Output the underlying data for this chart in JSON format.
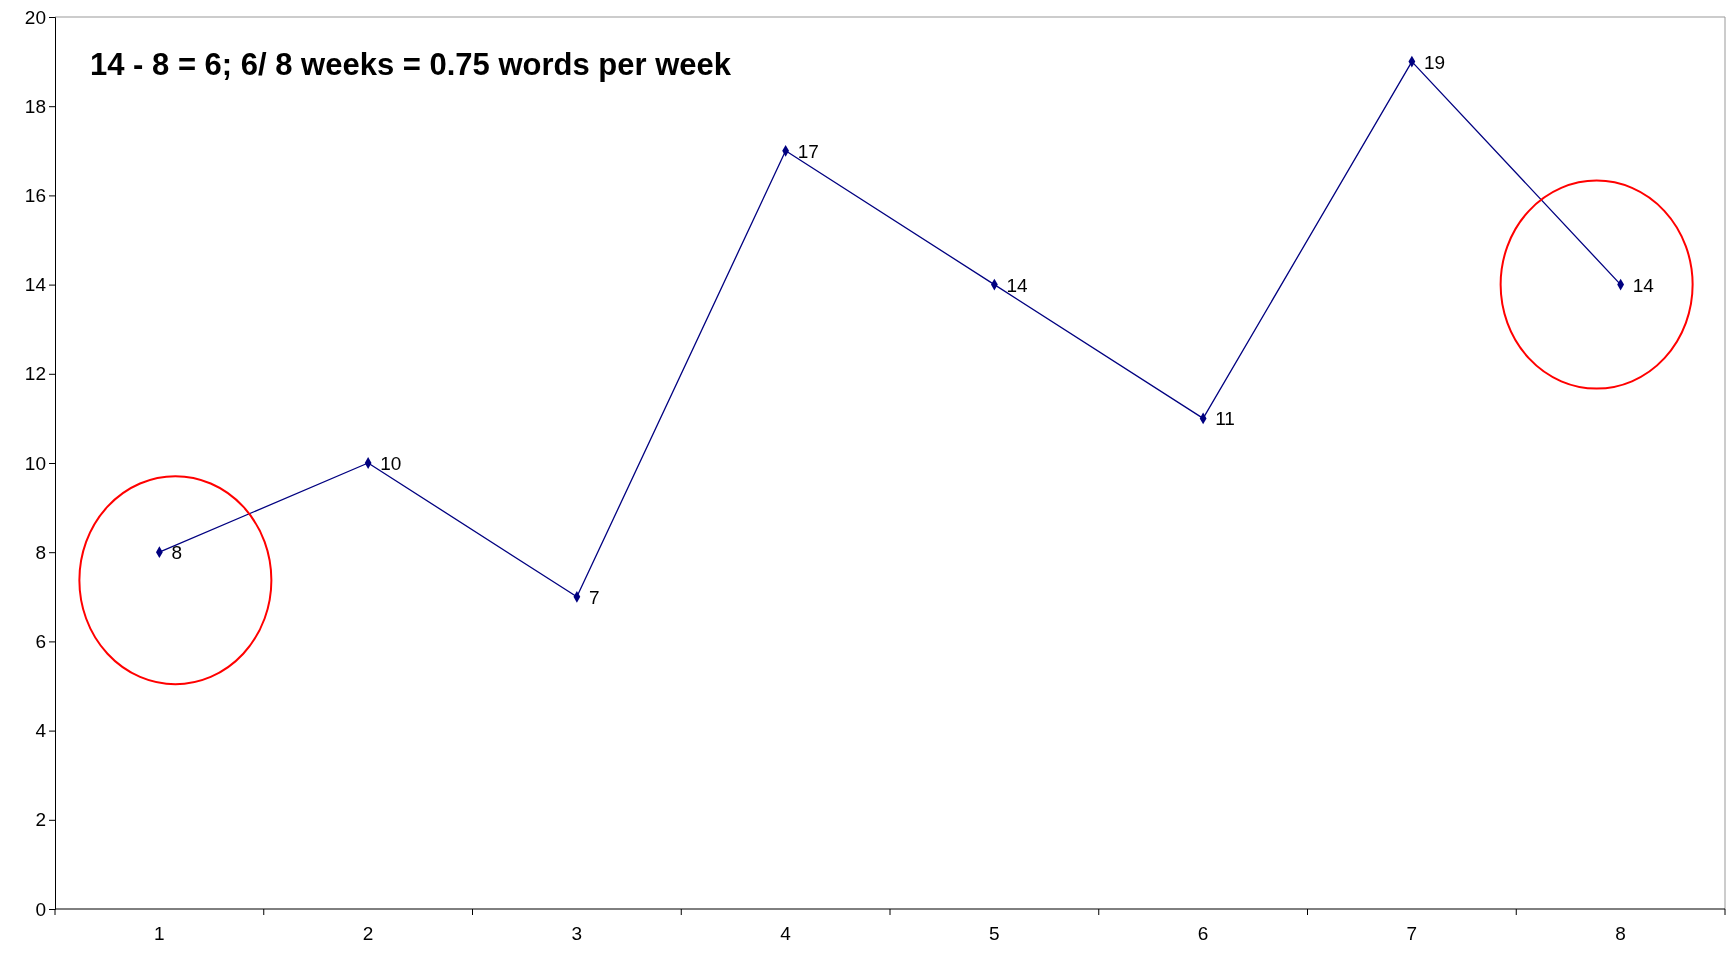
{
  "chart_data": {
    "type": "line",
    "categories": [
      "1",
      "2",
      "3",
      "4",
      "5",
      "6",
      "7",
      "8"
    ],
    "series": [
      {
        "color": "#000080",
        "values": [
          8,
          10,
          7,
          17,
          14,
          11,
          19,
          14
        ]
      }
    ],
    "ylim": [
      0,
      20
    ],
    "yticks": [
      0,
      2,
      4,
      6,
      8,
      10,
      12,
      14,
      16,
      18,
      20
    ],
    "annotations": [
      "14 - 8 = 6; 6/ 8 weeks = 0.75 words per week"
    ],
    "data_labels": true,
    "marker": "diamond",
    "line_style": "solid",
    "grid": false
  }
}
